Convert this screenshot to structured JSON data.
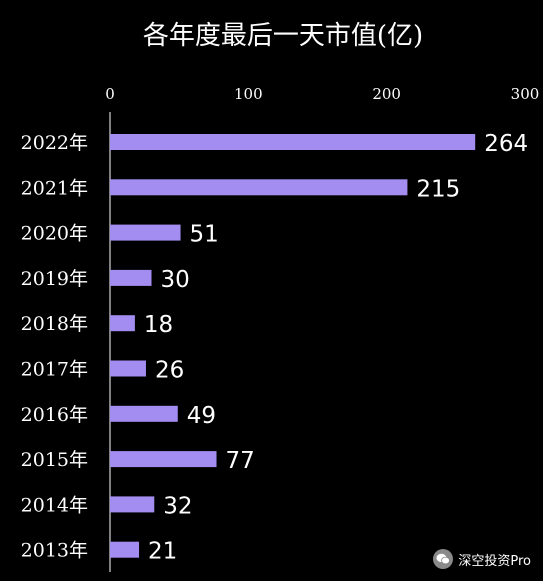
{
  "chart_data": {
    "type": "bar",
    "orientation": "horizontal",
    "title": "各年度最后一天市值(亿)",
    "categories": [
      "2022年",
      "2021年",
      "2020年",
      "2019年",
      "2018年",
      "2017年",
      "2016年",
      "2015年",
      "2014年",
      "2013年"
    ],
    "values": [
      264,
      215,
      51,
      30,
      18,
      26,
      49,
      77,
      32,
      21
    ],
    "xlim": [
      0,
      300
    ],
    "xticks": [
      "0",
      "100",
      "200",
      "300"
    ],
    "x_axis_position": "top",
    "grid": false,
    "bar_color": "#a48df0",
    "background": "#000000",
    "text_color": "#ffffff"
  },
  "watermark": {
    "icon": "wechat-icon",
    "text": "深空投资Pro"
  }
}
